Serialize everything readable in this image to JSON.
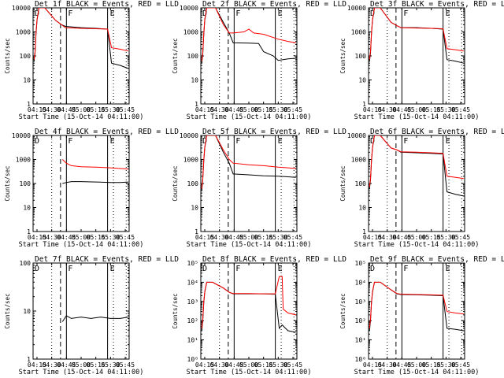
{
  "x_tick_labels": [
    "04:15",
    "04:30",
    "04:45",
    "05:00",
    "05:15",
    "05:30",
    "05:45"
  ],
  "x_label": "Start Time (15-Oct-14 04:11:00)",
  "y_label": "Counts/sec",
  "colors": {
    "events": "#000000",
    "lld": "#ff0000",
    "axes": "#000000"
  },
  "chart_data": [
    {
      "type": "line",
      "title": "Det 1f BLACK = Events, RED = LLD",
      "y_scale": "log",
      "ylim": [
        1,
        10000
      ],
      "y_tick_labels": [
        "1",
        "10",
        "100",
        "1000",
        "10000"
      ],
      "x_range": [
        "04:11",
        "05:49"
      ],
      "region_labels": [
        "D",
        "F",
        "E"
      ],
      "events": [
        [
          "04:12",
          60
        ],
        [
          "04:13",
          130
        ],
        [
          "04:14",
          800
        ],
        [
          "04:15",
          3000
        ],
        [
          "04:17",
          10000
        ],
        [
          "04:23",
          10000
        ],
        [
          "04:34",
          3000
        ],
        [
          "04:40",
          2000
        ],
        [
          "04:44",
          1700
        ],
        [
          "05:00",
          1500
        ],
        [
          "05:15",
          1400
        ],
        [
          "05:27",
          1300
        ],
        [
          "05:31",
          50
        ],
        [
          "05:40",
          40
        ],
        [
          "05:48",
          30
        ]
      ],
      "lld": [
        [
          "04:12",
          70
        ],
        [
          "04:13",
          150
        ],
        [
          "04:14",
          900
        ],
        [
          "04:15",
          3300
        ],
        [
          "04:17",
          10000
        ],
        [
          "04:23",
          10000
        ],
        [
          "04:34",
          3000
        ],
        [
          "04:40",
          2000
        ],
        [
          "04:44",
          1500
        ],
        [
          "05:00",
          1400
        ],
        [
          "05:15",
          1350
        ],
        [
          "05:27",
          1300
        ],
        [
          "05:31",
          220
        ],
        [
          "05:40",
          190
        ],
        [
          "05:48",
          160
        ]
      ]
    },
    {
      "type": "line",
      "title": "Det 2f BLACK = Events, RED = LLD",
      "y_scale": "log",
      "ylim": [
        1,
        10000
      ],
      "y_tick_labels": [
        "1",
        "10",
        "100",
        "1000",
        "10000"
      ],
      "x_range": [
        "04:11",
        "05:49"
      ],
      "region_labels": [
        "D",
        "F",
        "E"
      ],
      "events": [
        [
          "04:12",
          50
        ],
        [
          "04:13",
          120
        ],
        [
          "04:14",
          700
        ],
        [
          "04:15",
          3000
        ],
        [
          "04:17",
          10000
        ],
        [
          "04:26",
          10000
        ],
        [
          "04:34",
          2500
        ],
        [
          "04:40",
          900
        ],
        [
          "04:44",
          350
        ],
        [
          "05:00",
          340
        ],
        [
          "05:10",
          330
        ],
        [
          "05:15",
          150
        ],
        [
          "05:25",
          100
        ],
        [
          "05:30",
          65
        ],
        [
          "05:40",
          75
        ],
        [
          "05:48",
          80
        ]
      ],
      "lld": [
        [
          "04:12",
          60
        ],
        [
          "04:13",
          140
        ],
        [
          "04:14",
          800
        ],
        [
          "04:15",
          3300
        ],
        [
          "04:17",
          10000
        ],
        [
          "04:26",
          10000
        ],
        [
          "04:34",
          2000
        ],
        [
          "04:40",
          900
        ],
        [
          "04:44",
          900
        ],
        [
          "04:55",
          1000
        ],
        [
          "05:00",
          1300
        ],
        [
          "05:05",
          900
        ],
        [
          "05:15",
          800
        ],
        [
          "05:30",
          500
        ],
        [
          "05:40",
          400
        ],
        [
          "05:48",
          350
        ]
      ]
    },
    {
      "type": "line",
      "title": "Det 3f BLACK = Events, RED = LLD",
      "y_scale": "log",
      "ylim": [
        1,
        10000
      ],
      "y_tick_labels": [
        "1",
        "10",
        "100",
        "1000",
        "10000"
      ],
      "x_range": [
        "04:11",
        "05:49"
      ],
      "region_labels": [
        "D",
        "F",
        "E"
      ],
      "events": [
        [
          "04:12",
          60
        ],
        [
          "04:13",
          130
        ],
        [
          "04:14",
          800
        ],
        [
          "04:15",
          3000
        ],
        [
          "04:17",
          10000
        ],
        [
          "04:23",
          10000
        ],
        [
          "04:34",
          2500
        ],
        [
          "04:40",
          1800
        ],
        [
          "04:44",
          1500
        ],
        [
          "05:00",
          1500
        ],
        [
          "05:15",
          1400
        ],
        [
          "05:27",
          1300
        ],
        [
          "05:31",
          70
        ],
        [
          "05:40",
          60
        ],
        [
          "05:48",
          50
        ]
      ],
      "lld": [
        [
          "04:12",
          70
        ],
        [
          "04:13",
          150
        ],
        [
          "04:14",
          900
        ],
        [
          "04:15",
          3300
        ],
        [
          "04:17",
          10000
        ],
        [
          "04:23",
          10000
        ],
        [
          "04:34",
          2500
        ],
        [
          "04:40",
          1800
        ],
        [
          "04:44",
          1500
        ],
        [
          "05:00",
          1450
        ],
        [
          "05:15",
          1400
        ],
        [
          "05:27",
          1350
        ],
        [
          "05:31",
          200
        ],
        [
          "05:40",
          180
        ],
        [
          "05:48",
          160
        ]
      ]
    },
    {
      "type": "line",
      "title": "Det 4f BLACK = Events, RED = LLD",
      "y_scale": "log",
      "ylim": [
        1,
        10000
      ],
      "y_tick_labels": [
        "1",
        "10",
        "100",
        "1000",
        "10000"
      ],
      "x_range": [
        "04:11",
        "05:49"
      ],
      "region_labels": [
        "D",
        "F",
        "E"
      ],
      "events": [
        [
          "04:41",
          100
        ],
        [
          "04:45",
          110
        ],
        [
          "04:50",
          120
        ],
        [
          "05:00",
          120
        ],
        [
          "05:15",
          115
        ],
        [
          "05:30",
          110
        ],
        [
          "05:40",
          110
        ],
        [
          "05:48",
          115
        ]
      ],
      "lld": [
        [
          "04:41",
          1000
        ],
        [
          "04:45",
          700
        ],
        [
          "04:50",
          550
        ],
        [
          "05:00",
          500
        ],
        [
          "05:15",
          480
        ],
        [
          "05:30",
          450
        ],
        [
          "05:40",
          420
        ],
        [
          "05:48",
          400
        ]
      ]
    },
    {
      "type": "line",
      "title": "Det 5f BLACK = Events, RED = LLD",
      "y_scale": "log",
      "ylim": [
        1,
        10000
      ],
      "y_tick_labels": [
        "1",
        "10",
        "100",
        "1000",
        "10000"
      ],
      "x_range": [
        "04:11",
        "05:49"
      ],
      "region_labels": [
        "D",
        "F",
        "E"
      ],
      "events": [
        [
          "04:12",
          50
        ],
        [
          "04:13",
          150
        ],
        [
          "04:14",
          800
        ],
        [
          "04:15",
          3000
        ],
        [
          "04:17",
          10000
        ],
        [
          "04:26",
          10000
        ],
        [
          "04:34",
          2000
        ],
        [
          "04:40",
          700
        ],
        [
          "04:44",
          250
        ],
        [
          "05:00",
          230
        ],
        [
          "05:15",
          210
        ],
        [
          "05:30",
          200
        ],
        [
          "05:40",
          190
        ],
        [
          "05:48",
          180
        ]
      ],
      "lld": [
        [
          "04:12",
          60
        ],
        [
          "04:13",
          160
        ],
        [
          "04:14",
          900
        ],
        [
          "04:15",
          3300
        ],
        [
          "04:17",
          10000
        ],
        [
          "04:26",
          10000
        ],
        [
          "04:34",
          2500
        ],
        [
          "04:40",
          1000
        ],
        [
          "04:44",
          700
        ],
        [
          "05:00",
          600
        ],
        [
          "05:15",
          550
        ],
        [
          "05:30",
          480
        ],
        [
          "05:40",
          450
        ],
        [
          "05:48",
          420
        ]
      ]
    },
    {
      "type": "line",
      "title": "Det 6f BLACK = Events, RED = LLD",
      "y_scale": "log",
      "ylim": [
        1,
        10000
      ],
      "y_tick_labels": [
        "1",
        "10",
        "100",
        "1000",
        "10000"
      ],
      "x_range": [
        "04:11",
        "05:49"
      ],
      "region_labels": [
        "D",
        "F",
        "E"
      ],
      "events": [
        [
          "04:12",
          60
        ],
        [
          "04:13",
          140
        ],
        [
          "04:14",
          800
        ],
        [
          "04:15",
          3000
        ],
        [
          "04:17",
          10000
        ],
        [
          "04:23",
          10000
        ],
        [
          "04:34",
          3000
        ],
        [
          "04:40",
          2500
        ],
        [
          "04:44",
          2000
        ],
        [
          "05:00",
          1900
        ],
        [
          "05:15",
          1800
        ],
        [
          "05:27",
          1700
        ],
        [
          "05:31",
          45
        ],
        [
          "05:40",
          35
        ],
        [
          "05:48",
          30
        ]
      ],
      "lld": [
        [
          "04:12",
          70
        ],
        [
          "04:13",
          160
        ],
        [
          "04:14",
          900
        ],
        [
          "04:15",
          3300
        ],
        [
          "04:17",
          10000
        ],
        [
          "04:23",
          10000
        ],
        [
          "04:34",
          3000
        ],
        [
          "04:40",
          2500
        ],
        [
          "04:44",
          2100
        ],
        [
          "05:00",
          2000
        ],
        [
          "05:15",
          1900
        ],
        [
          "05:27",
          1800
        ],
        [
          "05:31",
          200
        ],
        [
          "05:40",
          180
        ],
        [
          "05:48",
          160
        ]
      ]
    },
    {
      "type": "line",
      "title": "Det 7f BLACK = Events, RED = LLD",
      "y_scale": "log",
      "ylim": [
        1,
        100
      ],
      "y_tick_labels": [
        "1",
        "10",
        "100"
      ],
      "x_range": [
        "04:11",
        "05:49"
      ],
      "region_labels": [
        "D",
        "F",
        "E"
      ],
      "events": [
        [
          "04:41",
          6
        ],
        [
          "04:45",
          8
        ],
        [
          "04:50",
          7
        ],
        [
          "05:00",
          7.5
        ],
        [
          "05:10",
          7
        ],
        [
          "05:20",
          7.5
        ],
        [
          "05:30",
          7
        ],
        [
          "05:40",
          7
        ],
        [
          "05:48",
          7.5
        ]
      ],
      "lld": []
    },
    {
      "type": "line",
      "title": "Det 8f BLACK = Events, RED = LLD",
      "y_scale": "log",
      "ylim": [
        1,
        100000
      ],
      "y_tick_labels": [
        "10⁰",
        "10¹",
        "10²",
        "10³",
        "10⁴",
        "10⁵"
      ],
      "x_range": [
        "04:11",
        "05:49"
      ],
      "region_labels": [
        "D",
        "F",
        "E"
      ],
      "events": [
        [
          "04:12",
          30
        ],
        [
          "04:13",
          100
        ],
        [
          "04:14",
          800
        ],
        [
          "04:15",
          3000
        ],
        [
          "04:17",
          10000
        ],
        [
          "04:23",
          10000
        ],
        [
          "04:34",
          5000
        ],
        [
          "04:40",
          3000
        ],
        [
          "04:44",
          2500
        ],
        [
          "05:00",
          2500
        ],
        [
          "05:15",
          2500
        ],
        [
          "05:27",
          2400
        ],
        [
          "05:31",
          40
        ],
        [
          "05:34",
          60
        ],
        [
          "05:40",
          30
        ],
        [
          "05:48",
          25
        ]
      ],
      "lld": [
        [
          "04:12",
          40
        ],
        [
          "04:13",
          120
        ],
        [
          "04:14",
          900
        ],
        [
          "04:15",
          3300
        ],
        [
          "04:17",
          10000
        ],
        [
          "04:23",
          10000
        ],
        [
          "04:34",
          5000
        ],
        [
          "04:40",
          3000
        ],
        [
          "04:44",
          2600
        ],
        [
          "05:00",
          2600
        ],
        [
          "05:15",
          2500
        ],
        [
          "05:27",
          2500
        ],
        [
          "05:31",
          20000
        ],
        [
          "05:34",
          20000
        ],
        [
          "05:35",
          400
        ],
        [
          "05:40",
          250
        ],
        [
          "05:48",
          200
        ]
      ]
    },
    {
      "type": "line",
      "title": "Det 9f BLACK = Events, RED = LLD",
      "y_scale": "log",
      "ylim": [
        1,
        100000
      ],
      "y_tick_labels": [
        "10⁰",
        "10¹",
        "10²",
        "10³",
        "10⁴",
        "10⁵"
      ],
      "x_range": [
        "04:11",
        "05:49"
      ],
      "region_labels": [
        "D",
        "F",
        "E"
      ],
      "events": [
        [
          "04:12",
          30
        ],
        [
          "04:13",
          100
        ],
        [
          "04:14",
          800
        ],
        [
          "04:15",
          3000
        ],
        [
          "04:17",
          10000
        ],
        [
          "04:23",
          10000
        ],
        [
          "04:34",
          4000
        ],
        [
          "04:40",
          2500
        ],
        [
          "04:44",
          2300
        ],
        [
          "05:00",
          2200
        ],
        [
          "05:15",
          2100
        ],
        [
          "05:27",
          2000
        ],
        [
          "05:31",
          40
        ],
        [
          "05:40",
          35
        ],
        [
          "05:48",
          30
        ]
      ],
      "lld": [
        [
          "04:12",
          40
        ],
        [
          "04:13",
          120
        ],
        [
          "04:14",
          900
        ],
        [
          "04:15",
          3300
        ],
        [
          "04:17",
          10000
        ],
        [
          "04:23",
          10000
        ],
        [
          "04:34",
          4000
        ],
        [
          "04:40",
          2600
        ],
        [
          "04:44",
          2400
        ],
        [
          "05:00",
          2300
        ],
        [
          "05:15",
          2200
        ],
        [
          "05:27",
          2100
        ],
        [
          "05:31",
          300
        ],
        [
          "05:40",
          250
        ],
        [
          "05:48",
          220
        ]
      ]
    }
  ]
}
